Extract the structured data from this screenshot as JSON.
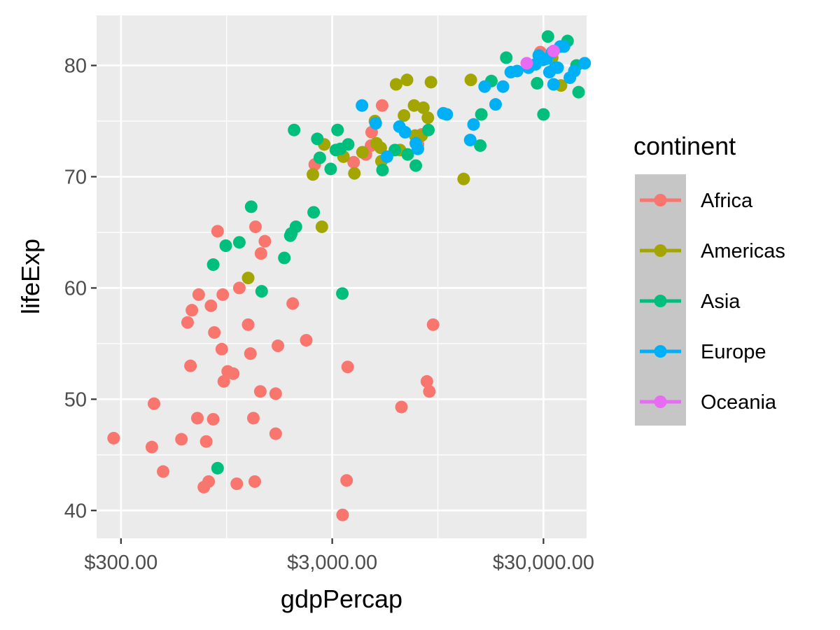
{
  "chart_data": {
    "type": "scatter",
    "xlabel": "gdpPercap",
    "ylabel": "lifeExp",
    "x_scale": "log10",
    "xlim": [
      230,
      48000
    ],
    "ylim": [
      37.5,
      84.5
    ],
    "x_ticks": [
      300,
      3000,
      30000
    ],
    "x_tick_labels": [
      "$300.00",
      "$3,000.00",
      "$30,000.00"
    ],
    "y_ticks": [
      40,
      50,
      60,
      70,
      80
    ],
    "y_tick_labels": [
      "40",
      "50",
      "60",
      "70",
      "80"
    ],
    "grid": true,
    "legend": {
      "title": "continent",
      "position": "right"
    },
    "series": [
      {
        "name": "Africa",
        "color": "#F8766D",
        "points": [
          [
            277,
            46.5
          ],
          [
            420,
            45.7
          ],
          [
            430,
            49.6
          ],
          [
            475,
            43.5
          ],
          [
            580,
            46.4
          ],
          [
            640,
            53.0
          ],
          [
            690,
            48.3
          ],
          [
            620,
            56.9
          ],
          [
            650,
            58.0
          ],
          [
            700,
            59.4
          ],
          [
            740,
            42.1
          ],
          [
            760,
            46.2
          ],
          [
            780,
            42.6
          ],
          [
            800,
            58.4
          ],
          [
            820,
            48.2
          ],
          [
            830,
            56.0
          ],
          [
            860,
            65.1
          ],
          [
            900,
            54.5
          ],
          [
            910,
            59.4
          ],
          [
            920,
            51.6
          ],
          [
            960,
            52.5
          ],
          [
            1020,
            52.3
          ],
          [
            1060,
            42.4
          ],
          [
            1090,
            60.0
          ],
          [
            1200,
            56.7
          ],
          [
            1230,
            54.1
          ],
          [
            1270,
            48.3
          ],
          [
            1290,
            42.6
          ],
          [
            1300,
            65.5
          ],
          [
            1370,
            50.7
          ],
          [
            1380,
            63.1
          ],
          [
            1440,
            64.2
          ],
          [
            1620,
            50.5
          ],
          [
            1660,
            54.8
          ],
          [
            1620,
            46.9
          ],
          [
            2480,
            71.1
          ],
          [
            2260,
            55.3
          ],
          [
            1950,
            58.6
          ],
          [
            3550,
            52.9
          ],
          [
            3360,
            39.6
          ],
          [
            3510,
            42.7
          ],
          [
            3790,
            71.3
          ],
          [
            4330,
            72.0
          ],
          [
            4610,
            74.0
          ],
          [
            5170,
            76.4
          ],
          [
            4580,
            72.8
          ],
          [
            6380,
            49.3
          ],
          [
            7640,
            72.9
          ],
          [
            7950,
            73.8
          ],
          [
            8420,
            51.6
          ],
          [
            8650,
            50.7
          ],
          [
            9010,
            56.7
          ],
          [
            29000,
            81.2
          ]
        ]
      },
      {
        "name": "Americas",
        "color": "#A3A500",
        "points": [
          [
            1200,
            60.9
          ],
          [
            2750,
            72.9
          ],
          [
            2430,
            70.2
          ],
          [
            2680,
            65.5
          ],
          [
            3390,
            71.8
          ],
          [
            3820,
            70.3
          ],
          [
            4170,
            72.2
          ],
          [
            4860,
            73.0
          ],
          [
            4780,
            75.0
          ],
          [
            5130,
            71.4
          ],
          [
            5090,
            72.6
          ],
          [
            6280,
            72.4
          ],
          [
            6020,
            78.3
          ],
          [
            6780,
            78.7
          ],
          [
            6560,
            75.5
          ],
          [
            7320,
            76.4
          ],
          [
            7400,
            73.7
          ],
          [
            7950,
            73.7
          ],
          [
            8100,
            76.2
          ],
          [
            8510,
            75.3
          ],
          [
            8800,
            78.5
          ],
          [
            12570,
            69.8
          ],
          [
            13590,
            78.7
          ],
          [
            33000,
            80.7
          ],
          [
            36300,
            78.2
          ]
        ]
      },
      {
        "name": "Asia",
        "color": "#00BF7D",
        "points": [
          [
            860,
            43.8
          ],
          [
            820,
            62.1
          ],
          [
            940,
            63.8
          ],
          [
            1090,
            64.1
          ],
          [
            1240,
            67.3
          ],
          [
            1390,
            59.7
          ],
          [
            1900,
            64.7
          ],
          [
            1780,
            62.7
          ],
          [
            1920,
            64.9
          ],
          [
            2020,
            65.5
          ],
          [
            2450,
            66.8
          ],
          [
            1980,
            74.2
          ],
          [
            2550,
            73.4
          ],
          [
            2620,
            71.7
          ],
          [
            2950,
            70.7
          ],
          [
            3120,
            72.4
          ],
          [
            3180,
            74.2
          ],
          [
            3280,
            72.5
          ],
          [
            3350,
            59.5
          ],
          [
            3570,
            72.9
          ],
          [
            5190,
            70.6
          ],
          [
            5940,
            72.4
          ],
          [
            6830,
            72.0
          ],
          [
            7460,
            71.0
          ],
          [
            8560,
            74.2
          ],
          [
            15060,
            72.8
          ],
          [
            15240,
            75.6
          ],
          [
            17000,
            78.6
          ],
          [
            20000,
            80.7
          ],
          [
            28000,
            78.4
          ],
          [
            30000,
            75.6
          ],
          [
            31500,
            82.6
          ],
          [
            39000,
            82.2
          ],
          [
            43000,
            80.0
          ],
          [
            44000,
            77.6
          ]
        ]
      },
      {
        "name": "Europe",
        "color": "#00B0F6",
        "points": [
          [
            4150,
            76.4
          ],
          [
            4820,
            74.8
          ],
          [
            5450,
            71.8
          ],
          [
            6240,
            74.5
          ],
          [
            6640,
            74.0
          ],
          [
            7460,
            73.0
          ],
          [
            7630,
            72.5
          ],
          [
            10070,
            75.7
          ],
          [
            10460,
            75.6
          ],
          [
            14000,
            74.7
          ],
          [
            13500,
            73.3
          ],
          [
            15800,
            78.1
          ],
          [
            17800,
            76.5
          ],
          [
            19300,
            78.1
          ],
          [
            21000,
            79.4
          ],
          [
            22500,
            79.5
          ],
          [
            25500,
            79.8
          ],
          [
            27500,
            80.1
          ],
          [
            28500,
            80.9
          ],
          [
            29800,
            80.5
          ],
          [
            31000,
            80.6
          ],
          [
            32000,
            79.4
          ],
          [
            33000,
            81.2
          ],
          [
            33500,
            78.3
          ],
          [
            34000,
            79.8
          ],
          [
            35000,
            79.8
          ],
          [
            36000,
            81.7
          ],
          [
            37500,
            81.7
          ],
          [
            40000,
            78.9
          ],
          [
            47000,
            80.2
          ],
          [
            42000,
            79.5
          ]
        ]
      },
      {
        "name": "Oceania",
        "color": "#E76BF3",
        "points": [
          [
            25000,
            80.2
          ],
          [
            33500,
            81.3
          ]
        ]
      }
    ]
  }
}
